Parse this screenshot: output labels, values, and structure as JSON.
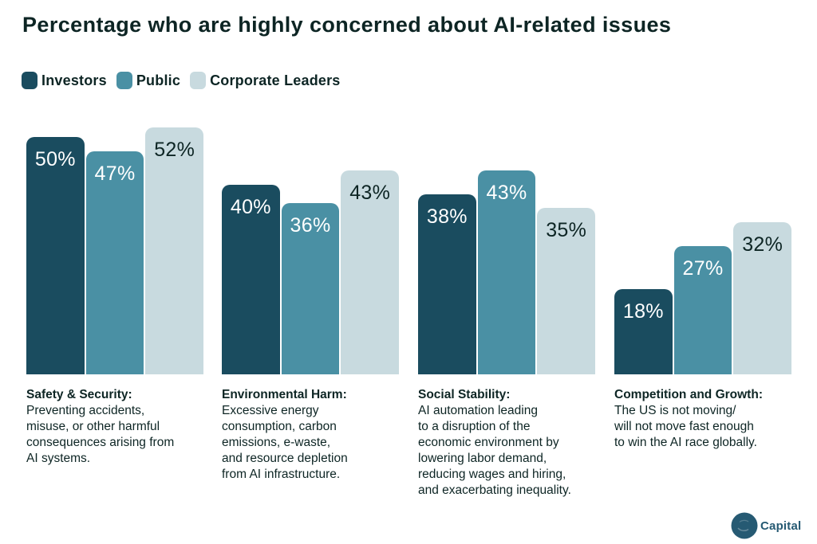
{
  "title": "Percentage who are highly concerned about AI-related issues",
  "colors": {
    "investors": "#1a4c5f",
    "public": "#4a90a4",
    "corporate_leaders": "#c8dadf",
    "text_dark": "#0d2524",
    "label_on_dark": "#ffffff",
    "logo": "#265a73",
    "background": "#ffffff"
  },
  "legend": [
    {
      "label": "Investors",
      "color": "#1a4c5f"
    },
    {
      "label": "Public",
      "color": "#4a90a4"
    },
    {
      "label": "Corporate Leaders",
      "color": "#c8dadf"
    }
  ],
  "chart_data": {
    "type": "bar",
    "title": "Percentage who are highly concerned about AI-related issues",
    "categories": [
      "Safety & Security",
      "Environmental Harm",
      "Social Stability",
      "Competition and Growth"
    ],
    "series": [
      {
        "name": "Investors",
        "color": "#1a4c5f",
        "label_color": "#ffffff",
        "values": [
          50,
          40,
          38,
          18
        ]
      },
      {
        "name": "Public",
        "color": "#4a90a4",
        "label_color": "#ffffff",
        "values": [
          47,
          36,
          43,
          27
        ]
      },
      {
        "name": "Corporate Leaders",
        "color": "#c8dadf",
        "label_color": "#0d2524",
        "values": [
          52,
          43,
          35,
          32
        ]
      }
    ],
    "value_suffix": "%",
    "xlabel": "",
    "ylabel": "",
    "ylim": [
      0,
      55
    ],
    "grid": false,
    "axes_visible": false,
    "legend_position": "top-left",
    "value_labels": "inside-top"
  },
  "descriptions": [
    {
      "heading": "Safety & Security:",
      "lines": [
        "Preventing accidents,",
        "misuse, or other harmful",
        "consequences arising from",
        "AI systems."
      ]
    },
    {
      "heading": "Environmental Harm:",
      "lines": [
        "Excessive energy",
        "consumption, carbon",
        "emissions, e-waste,",
        "and resource depletion",
        "from AI infrastructure."
      ]
    },
    {
      "heading": "Social Stability:",
      "lines": [
        "AI automation leading",
        "to a disruption of the",
        "economic environment by",
        "lowering labor demand,",
        "reducing wages and hiring,",
        "and exacerbating inequality."
      ]
    },
    {
      "heading": "Competition and Growth:",
      "lines": [
        "The US is not moving/",
        "will not move fast enough",
        "to win the AI race globally."
      ]
    }
  ],
  "logo": {
    "text": "Capital"
  }
}
